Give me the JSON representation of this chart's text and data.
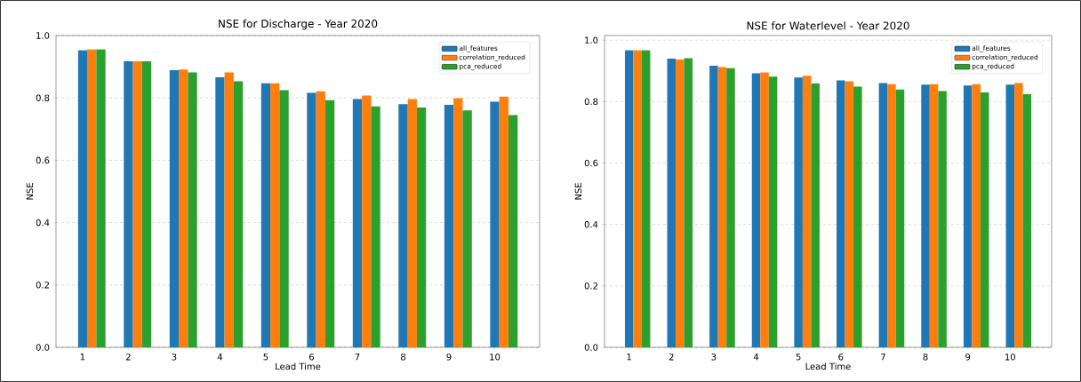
{
  "chart_data": [
    {
      "type": "bar",
      "title": "NSE for Discharge - Year 2020",
      "xlabel": "Lead Time",
      "ylabel": "NSE",
      "categories": [
        "1",
        "2",
        "3",
        "4",
        "5",
        "6",
        "7",
        "8",
        "9",
        "10"
      ],
      "series": [
        {
          "name": "all_features",
          "color": "#1f77b4",
          "values": [
            0.953,
            0.917,
            0.889,
            0.866,
            0.847,
            0.816,
            0.796,
            0.78,
            0.778,
            0.788
          ]
        },
        {
          "name": "correlation_reduced",
          "color": "#ff7f0e",
          "values": [
            0.956,
            0.917,
            0.891,
            0.882,
            0.847,
            0.821,
            0.808,
            0.796,
            0.799,
            0.804
          ]
        },
        {
          "name": "pca_reduced",
          "color": "#2ca02c",
          "values": [
            0.956,
            0.917,
            0.882,
            0.853,
            0.825,
            0.793,
            0.773,
            0.769,
            0.76,
            0.745
          ]
        }
      ],
      "ylim": [
        0,
        1.0
      ],
      "yticks": [
        {
          "value": 0,
          "label": "0.0"
        },
        {
          "value": 0.2,
          "label": "0.2"
        },
        {
          "value": 0.4,
          "label": "0.4"
        },
        {
          "value": 0.6,
          "label": "0.6"
        },
        {
          "value": 0.8,
          "label": "0.8"
        },
        {
          "value": 1.0,
          "label": "1.0"
        }
      ],
      "grid": "y",
      "legend": "top right"
    },
    {
      "type": "bar",
      "title": "NSE for Waterlevel - Year 2020",
      "xlabel": "Lead Time",
      "ylabel": "NSE",
      "categories": [
        "1",
        "2",
        "3",
        "4",
        "5",
        "6",
        "7",
        "8",
        "9",
        "10"
      ],
      "series": [
        {
          "name": "all_features",
          "color": "#1f77b4",
          "values": [
            0.967,
            0.94,
            0.917,
            0.892,
            0.878,
            0.869,
            0.86,
            0.855,
            0.852,
            0.855
          ]
        },
        {
          "name": "correlation_reduced",
          "color": "#ff7f0e",
          "values": [
            0.967,
            0.937,
            0.912,
            0.895,
            0.884,
            0.866,
            0.857,
            0.857,
            0.857,
            0.86
          ]
        },
        {
          "name": "pca_reduced",
          "color": "#2ca02c",
          "values": [
            0.967,
            0.941,
            0.909,
            0.881,
            0.859,
            0.849,
            0.839,
            0.834,
            0.83,
            0.824
          ]
        }
      ],
      "ylim": [
        0,
        1.015
      ],
      "yticks": [
        {
          "value": 0,
          "label": "0.0"
        },
        {
          "value": 0.2,
          "label": "0.2"
        },
        {
          "value": 0.4,
          "label": "0.4"
        },
        {
          "value": 0.6,
          "label": "0.6"
        },
        {
          "value": 0.8,
          "label": "0.8"
        },
        {
          "value": 1.0,
          "label": "1.0"
        }
      ],
      "grid": "y",
      "legend": "top right"
    }
  ]
}
